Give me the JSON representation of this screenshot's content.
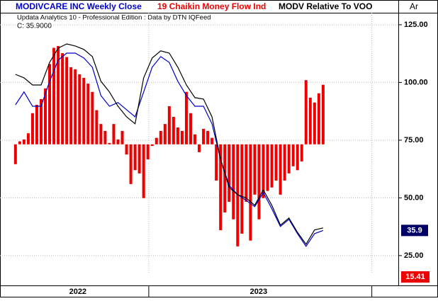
{
  "chart_data": {
    "type": "combo",
    "subtitle": "Updata Analytics 10 - Professional Edition : Data by DTN IQFeed",
    "annotation": "C: 35.9000",
    "corner_label": "Ar",
    "last_close_label": "35.9",
    "cmf_last_label": "15.41",
    "cmf_zero": 73.2,
    "xlim": [
      -0.3,
      89.6
    ],
    "ylim": [
      17.6,
      130.2
    ],
    "yticks": [
      {
        "value": 125,
        "label": "125.00"
      },
      {
        "value": 100,
        "label": "100.00"
      },
      {
        "value": 75,
        "label": "75.00"
      },
      {
        "value": 50,
        "label": "50.00"
      },
      {
        "value": 25,
        "label": "25.00"
      }
    ],
    "xticks": [
      {
        "value": 14.6,
        "label": "2022"
      },
      {
        "value": 56.9,
        "label": "2023"
      }
    ],
    "x_dividers": [
      31.2,
      83.4
    ],
    "grid": true,
    "series": [
      {
        "name": "MODIVCARE INC Weekly Close",
        "type": "line",
        "color": "#0000cc",
        "x": [
          0,
          2,
          4,
          6,
          8,
          10,
          12,
          14,
          16,
          18,
          20,
          22,
          24,
          26,
          28,
          30,
          32,
          34,
          36,
          38,
          40,
          42,
          44,
          46,
          48,
          50,
          52,
          54,
          56,
          58,
          60,
          62,
          64,
          66,
          68,
          70,
          72
        ],
        "values": [
          90.3,
          95.9,
          89.7,
          89.7,
          100.5,
          109.7,
          112.7,
          112.7,
          110.6,
          106.6,
          94.3,
          89.7,
          91.3,
          88.2,
          85.1,
          95.9,
          106.6,
          111.2,
          108.7,
          100.5,
          94.3,
          89.7,
          89.7,
          82.1,
          66.7,
          55.4,
          51.4,
          48.9,
          46.2,
          52.3,
          45.3,
          37.6,
          40.7,
          34.5,
          29.0,
          34.5,
          35.9
        ]
      },
      {
        "name": "19 Chaikin Money Flow Ind",
        "type": "bar",
        "color": "#ee0000",
        "x": [
          0,
          1,
          2,
          3,
          4,
          5,
          6,
          7,
          8,
          9,
          10,
          11,
          12,
          13,
          14,
          15,
          16,
          17,
          18,
          19,
          20,
          21,
          22,
          23,
          24,
          25,
          26,
          27,
          28,
          29,
          30,
          31,
          32,
          33,
          34,
          35,
          36,
          37,
          38,
          39,
          40,
          41,
          42,
          43,
          44,
          45,
          46,
          47,
          48,
          49,
          50,
          51,
          52,
          53,
          54,
          55,
          56,
          57,
          58,
          59,
          60,
          61,
          62,
          63,
          64,
          65,
          66,
          67,
          68,
          69,
          70,
          71,
          72
        ],
        "values": [
          64.6,
          74.5,
          75.3,
          78,
          86.7,
          90.3,
          92.8,
          97.4,
          108,
          115,
          115.8,
          112.7,
          111,
          106.6,
          105.7,
          103.5,
          102,
          99.5,
          95.9,
          88,
          82,
          79,
          73.8,
          82,
          75.3,
          79,
          68.8,
          56,
          62,
          60.6,
          49.9,
          66.7,
          72.5,
          76,
          79,
          82,
          89.7,
          85.1,
          80.5,
          79,
          95.9,
          86.7,
          77.5,
          69.8,
          79.9,
          79,
          76,
          57.5,
          36,
          43.7,
          48.3,
          40.7,
          29,
          34.5,
          48.3,
          31.5,
          51.4,
          40.7,
          49.9,
          53,
          54.5,
          57.5,
          51.4,
          57.5,
          60.6,
          63.7,
          62,
          65.8,
          101,
          93.4,
          91.3,
          95.3,
          99
        ]
      },
      {
        "name": "MODV Relative To VOO",
        "type": "line",
        "color": "#000000",
        "x": [
          0,
          2,
          4,
          6,
          8,
          10,
          12,
          14,
          16,
          18,
          20,
          22,
          24,
          26,
          28,
          30,
          32,
          34,
          36,
          38,
          40,
          42,
          44,
          46,
          48,
          50,
          52,
          54,
          56,
          58,
          60,
          62,
          64,
          66,
          68,
          70,
          72
        ],
        "values": [
          103.5,
          102.0,
          98.9,
          98.9,
          108.7,
          114.9,
          116.7,
          115.8,
          114.3,
          111.2,
          100.5,
          95.9,
          89.7,
          85.1,
          82.1,
          102.0,
          110.6,
          113.7,
          112.7,
          106.6,
          98.9,
          93.4,
          92.8,
          85.1,
          66.7,
          54.5,
          51.4,
          49.9,
          46.8,
          53.5,
          46.8,
          38.2,
          41.3,
          35.1,
          29.9,
          36.1,
          37.0
        ]
      }
    ]
  }
}
